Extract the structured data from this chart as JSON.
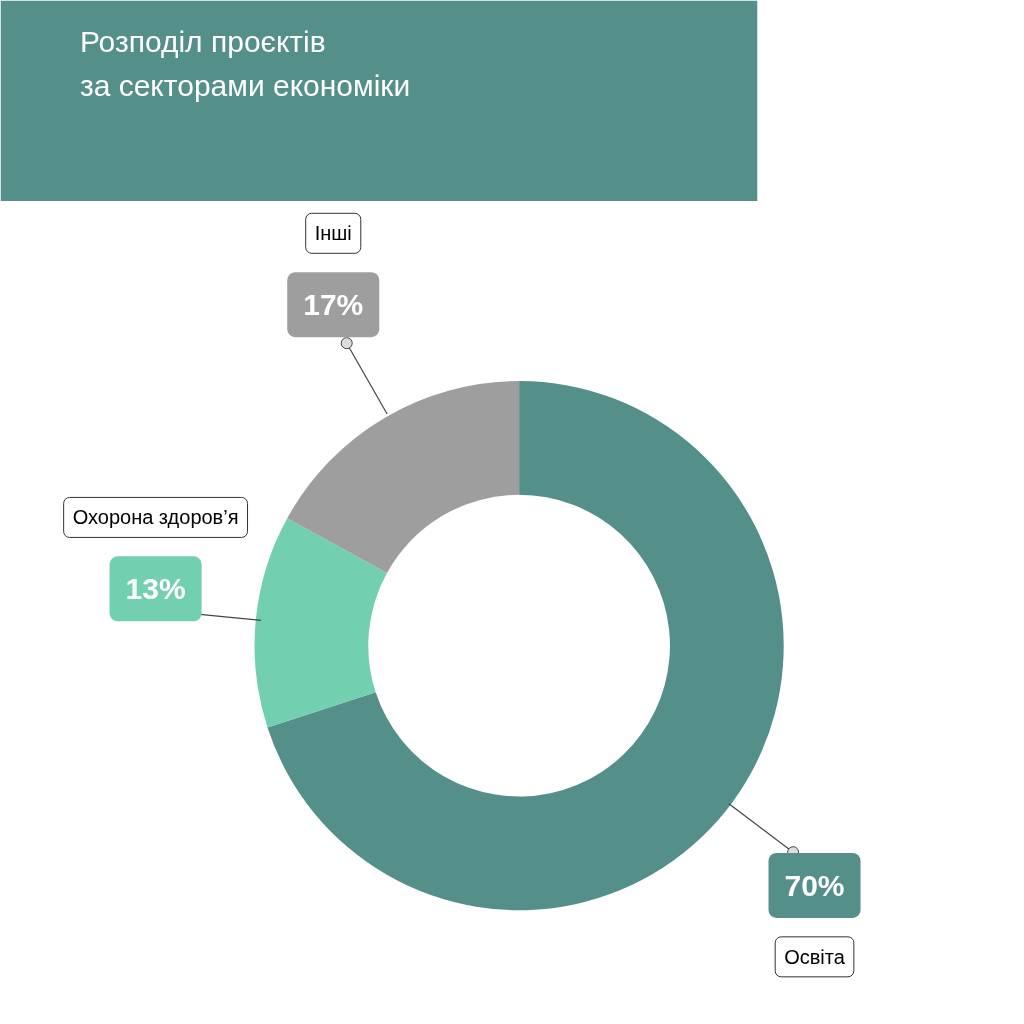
{
  "chart_data": {
    "type": "donut",
    "title": "Розподіл проєктів\nза секторами економіки",
    "categories": [
      "Освіта",
      "Охорона здоров’я",
      "Інші"
    ],
    "values": [
      70,
      13,
      17
    ],
    "colors": [
      "#548f89",
      "#72cfb0",
      "#9e9e9e"
    ],
    "value_labels": [
      "70%",
      "13%",
      "17%"
    ]
  }
}
